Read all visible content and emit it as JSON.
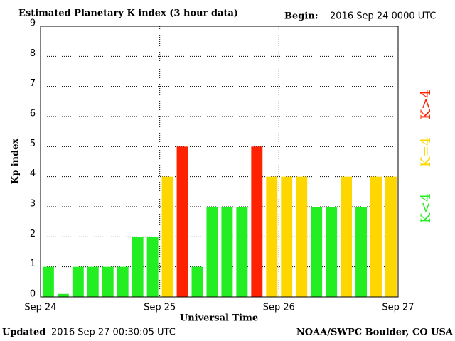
{
  "chart_data": {
    "type": "bar",
    "title": "Estimated Planetary K index (3 hour data)",
    "begin_label": "Begin:",
    "begin_value": "2016 Sep 24 0000 UTC",
    "updated_label": "Updated",
    "updated_value": "2016 Sep 27 00:30:05 UTC",
    "source": "NOAA/SWPC Boulder, CO USA",
    "xlabel": "Universal Time",
    "ylabel": "Kp index",
    "x": [
      0,
      3,
      6,
      9,
      12,
      15,
      18,
      21,
      24,
      27,
      30,
      33,
      36,
      39,
      42,
      45,
      48,
      51,
      54,
      57,
      60,
      63,
      66,
      69
    ],
    "values": [
      1,
      0.1,
      1,
      1,
      1,
      1,
      2,
      2,
      4,
      5,
      1,
      3,
      3,
      3,
      5,
      4,
      4,
      4,
      3,
      3,
      4,
      3,
      4,
      4
    ],
    "colors": [
      "#22ee22",
      "#22ee22",
      "#22ee22",
      "#22ee22",
      "#22ee22",
      "#22ee22",
      "#22ee22",
      "#22ee22",
      "#ffd700",
      "#ff2200",
      "#22ee22",
      "#22ee22",
      "#22ee22",
      "#22ee22",
      "#ff2200",
      "#ffd700",
      "#ffd700",
      "#ffd700",
      "#22ee22",
      "#22ee22",
      "#ffd700",
      "#22ee22",
      "#ffd700",
      "#ffd700"
    ],
    "bar_span": 3,
    "xlim": [
      0,
      72
    ],
    "xticks": [
      {
        "value": 0,
        "label": "Sep 24"
      },
      {
        "value": 24,
        "label": "Sep 25"
      },
      {
        "value": 48,
        "label": "Sep 26"
      },
      {
        "value": 72,
        "label": "Sep 27"
      }
    ],
    "ylim": [
      0,
      9
    ],
    "yticks": [
      0,
      1,
      2,
      3,
      4,
      5,
      6,
      7,
      8,
      9
    ],
    "grid": true,
    "legend": [
      {
        "label": "K<4",
        "color": "#22ee22"
      },
      {
        "label": "K=4",
        "color": "#ffd700"
      },
      {
        "label": "K>4",
        "color": "#ff2200"
      }
    ]
  }
}
